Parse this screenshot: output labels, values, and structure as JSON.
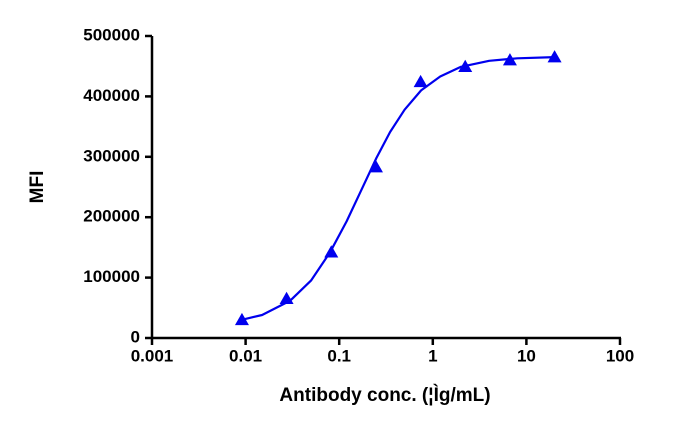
{
  "chart_data": {
    "type": "scatter",
    "xlabel": "Antibody conc. (¦Ìg/mL)",
    "ylabel": "MFI",
    "xscale": "log",
    "xlim": [
      0.001,
      100
    ],
    "xticks": [
      0.001,
      0.01,
      0.1,
      1,
      10,
      100
    ],
    "ylim": [
      0,
      500000
    ],
    "yticks": [
      0,
      100000,
      200000,
      300000,
      400000,
      500000
    ],
    "grid": false,
    "series": [
      {
        "color": "#0000ee",
        "marker": "triangle",
        "x": [
          0.00914,
          0.0274,
          0.0823,
          0.247,
          0.741,
          2.22,
          6.67,
          20
        ],
        "values": [
          30000,
          65000,
          142000,
          283000,
          424000,
          449000,
          460000,
          465000
        ]
      },
      {
        "color": "#0000ee",
        "marker": "line",
        "x": [
          0.009,
          0.015,
          0.03,
          0.05,
          0.08,
          0.12,
          0.17,
          0.25,
          0.35,
          0.5,
          0.75,
          1.2,
          2,
          4,
          8,
          20
        ],
        "values": [
          30000,
          38000,
          62000,
          95000,
          142000,
          193000,
          243000,
          298000,
          341000,
          378000,
          410000,
          433000,
          449000,
          459000,
          463000,
          465000
        ]
      }
    ]
  }
}
